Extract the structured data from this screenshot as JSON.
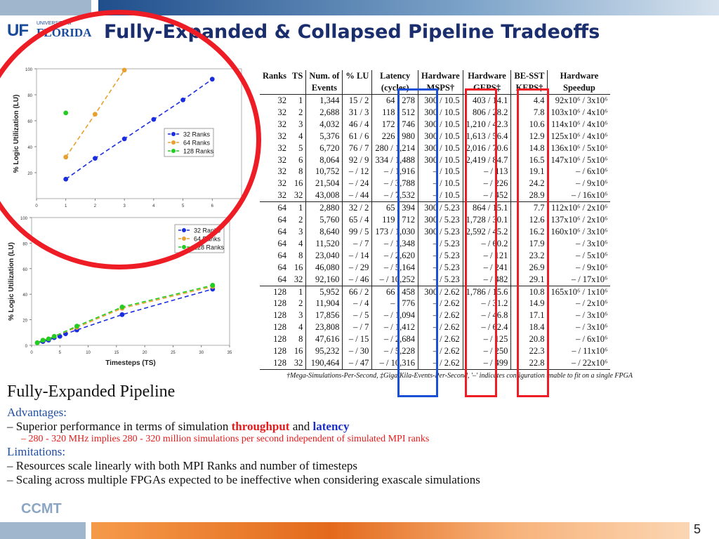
{
  "slide": {
    "title": "Fully-Expanded & Collapsed Pipeline Tradeoffs",
    "logo_university": "UNIVERSITY of",
    "logo_uf": "UF",
    "logo_florida": "FLORIDA",
    "brand": "CCMT",
    "page_number": "5"
  },
  "colors": {
    "accent_red": "#ee1c25",
    "accent_blue": "#1f4ea3",
    "title": "#1a2e6e"
  },
  "table": {
    "headers": [
      [
        "Ranks",
        ""
      ],
      [
        "TS",
        ""
      ],
      [
        "Num. of",
        "Events"
      ],
      [
        "% LU",
        ""
      ],
      [
        "Latency",
        "(cycles)"
      ],
      [
        "Hardware",
        "MSPS†"
      ],
      [
        "Hardware",
        "GEPS‡"
      ],
      [
        "BE-SST",
        "KEPS‡"
      ],
      [
        "Hardware",
        "Speedup"
      ]
    ],
    "rows": [
      [
        "32",
        "1",
        "1,344",
        "15 /  2",
        "64 /  278",
        "300 / 10.5",
        "403 / 14.1",
        "4.4",
        "92x10⁶ /  3x10⁶"
      ],
      [
        "32",
        "2",
        "2,688",
        "31 /  3",
        "118 /  512",
        "300 / 10.5",
        "806 / 28.2",
        "7.8",
        "103x10⁶ /  4x10⁶"
      ],
      [
        "32",
        "3",
        "4,032",
        "46 /  4",
        "172 /  746",
        "300 / 10.5",
        "1,210 / 42.3",
        "10.6",
        "114x10⁶ /  4x10⁶"
      ],
      [
        "32",
        "4",
        "5,376",
        "61 /  6",
        "226 /  980",
        "300 / 10.5",
        "1,613 / 56.4",
        "12.9",
        "125x10⁶ /  4x10⁶"
      ],
      [
        "32",
        "5",
        "6,720",
        "76 /  7",
        "280 / 1,214",
        "300 / 10.5",
        "2,016 / 70.6",
        "14.8",
        "136x10⁶ /  5x10⁶"
      ],
      [
        "32",
        "6",
        "8,064",
        "92 /  9",
        "334 / 1,488",
        "300 / 10.5",
        "2,419 / 84.7",
        "16.5",
        "147x10⁶ /  5x10⁶"
      ],
      [
        "32",
        "8",
        "10,752",
        "– / 12",
        "– / 1,916",
        "– / 10.5",
        "– / 113",
        "19.1",
        "– /  6x10⁶"
      ],
      [
        "32",
        "16",
        "21,504",
        "– / 24",
        "– / 3,788",
        "– / 10.5",
        "– / 226",
        "24.2",
        "– /  9x10⁶"
      ],
      [
        "32",
        "32",
        "43,008",
        "– / 44",
        "– / 7,532",
        "– / 10.5",
        "– / 452",
        "28.9",
        "– / 16x10⁶"
      ],
      [
        "64",
        "1",
        "2,880",
        "32 /  2",
        "65 /  394",
        "300 / 5.23",
        "864 / 15.1",
        "7.7",
        "112x10⁶ /  2x10⁶"
      ],
      [
        "64",
        "2",
        "5,760",
        "65 /  4",
        "119 /  712",
        "300 / 5.23",
        "1,728 / 30.1",
        "12.6",
        "137x10⁶ /  2x10⁶"
      ],
      [
        "64",
        "3",
        "8,640",
        "99 /  5",
        "173 / 1,030",
        "300 / 5.23",
        "2,592 / 45.2",
        "16.2",
        "160x10⁶ /  3x10⁶"
      ],
      [
        "64",
        "4",
        "11,520",
        "– /  7",
        "– / 1,348",
        "– / 5.23",
        "– / 60.2",
        "17.9",
        "– /  3x10⁶"
      ],
      [
        "64",
        "8",
        "23,040",
        "– / 14",
        "– / 2,620",
        "– / 5.23",
        "– / 121",
        "23.2",
        "– /  5x10⁶"
      ],
      [
        "64",
        "16",
        "46,080",
        "– / 29",
        "– / 5,164",
        "– / 5.23",
        "– / 241",
        "26.9",
        "– /  9x10⁶"
      ],
      [
        "64",
        "32",
        "92,160",
        "– / 46",
        "– / 10,252",
        "– / 5.23",
        "– / 482",
        "29.1",
        "– / 17x10⁶"
      ],
      [
        "128",
        "1",
        "5,952",
        "66 /  2",
        "66 /  458",
        "300 / 2.62",
        "1,786 / 15.6",
        "10.8",
        "165x10⁶ /  1x10⁶"
      ],
      [
        "128",
        "2",
        "11,904",
        "– /  4",
        "– /  776",
        "– / 2.62",
        "– / 31.2",
        "14.9",
        "– /  2x10⁶"
      ],
      [
        "128",
        "3",
        "17,856",
        "– /  5",
        "– / 1,094",
        "– / 2.62",
        "– / 46.8",
        "17.1",
        "– /  3x10⁶"
      ],
      [
        "128",
        "4",
        "23,808",
        "– /  7",
        "– / 1,412",
        "– / 2.62",
        "– / 62.4",
        "18.4",
        "– /  3x10⁶"
      ],
      [
        "128",
        "8",
        "47,616",
        "– / 15",
        "– / 2,684",
        "– / 2.62",
        "– / 125",
        "20.8",
        "– /  6x10⁶"
      ],
      [
        "128",
        "16",
        "95,232",
        "– / 30",
        "– / 5,228",
        "– / 2.62",
        "– / 250",
        "22.3",
        "– / 11x10⁶"
      ],
      [
        "128",
        "32",
        "190,464",
        "– / 47",
        "– / 10,316",
        "– / 2.62",
        "– / 499",
        "22.8",
        "– / 22x10⁶"
      ]
    ],
    "footnote": "†Mega-Simulations-Per-Second, ‡Giga/Kila-Events-Per-Second, '–' indicates configuration unable to fit on a single FPGA"
  },
  "text": {
    "heading": "Fully-Expanded Pipeline",
    "advantages_label": "Advantages:",
    "adv_1_pre": "Superior performance in terms of simulation ",
    "adv_1_throughput": "throughput",
    "adv_1_and": " and ",
    "adv_1_latency": "latency",
    "adv_1_sub": "280 - 320 MHz implies 280 - 320 million simulations per second independent of simulated MPI ranks",
    "limitations_label": "Limitations:",
    "lim_1": "Resources scale linearly with both MPI Ranks and number of timesteps",
    "lim_2": "Scaling across multiple FPGAs expected to be ineffective when considering exascale simulations",
    "dash": "–"
  },
  "chart_data": [
    {
      "type": "line",
      "ylabel": "% Logic Utilization (LU)",
      "xlabel": "",
      "xlim": [
        0,
        7
      ],
      "ylim": [
        0,
        100
      ],
      "xticks": [
        "0",
        "1",
        "2",
        "3",
        "4",
        "5",
        "6"
      ],
      "yticks": [
        "20",
        "40",
        "60",
        "80",
        "100"
      ],
      "legend": "bottom-right",
      "series": [
        {
          "name": "32 Ranks",
          "color": "#1a2ee0",
          "x": [
            1,
            2,
            3,
            4,
            5,
            6
          ],
          "y": [
            15,
            31,
            46,
            61,
            76,
            92
          ]
        },
        {
          "name": "64 Ranks",
          "color": "#e8a030",
          "x": [
            1,
            2,
            3
          ],
          "y": [
            32,
            65,
            99
          ]
        },
        {
          "name": "128 Ranks",
          "color": "#22cc22",
          "x": [
            1
          ],
          "y": [
            66
          ]
        }
      ]
    },
    {
      "type": "line",
      "ylabel": "% Logic Utilization (LU)",
      "xlabel": "Timesteps (TS)",
      "xlim": [
        0,
        35
      ],
      "ylim": [
        0,
        100
      ],
      "xticks": [
        "0",
        "5",
        "10",
        "15",
        "20",
        "25",
        "30",
        "35"
      ],
      "yticks": [
        "0",
        "20",
        "40",
        "60",
        "80",
        "100"
      ],
      "legend": "top-right",
      "series": [
        {
          "name": "32 Ranks",
          "color": "#1a2ee0",
          "x": [
            1,
            2,
            3,
            4,
            5,
            6,
            8,
            16,
            32
          ],
          "y": [
            2,
            3,
            4,
            6,
            7,
            9,
            12,
            24,
            44
          ]
        },
        {
          "name": "64 Ranks",
          "color": "#e8a030",
          "x": [
            1,
            2,
            3,
            4,
            8,
            16,
            32
          ],
          "y": [
            2,
            4,
            5,
            7,
            14,
            29,
            46
          ]
        },
        {
          "name": "128 Ranks",
          "color": "#22cc22",
          "x": [
            1,
            2,
            3,
            4,
            8,
            16,
            32
          ],
          "y": [
            2,
            4,
            5,
            7,
            15,
            30,
            47
          ]
        }
      ]
    }
  ]
}
